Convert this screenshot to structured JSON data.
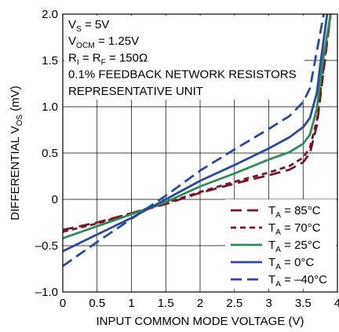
{
  "chart_data": {
    "type": "line",
    "title": "",
    "xlabel": "INPUT COMMON MODE VOLTAGE (V)",
    "ylabel": {
      "pre": "DIFFERENTIAL V",
      "sub": "OS",
      "post": " (mV)"
    },
    "xlim": [
      0,
      4
    ],
    "ylim": [
      -1.0,
      2.0
    ],
    "xticks": [
      "0",
      "0.5",
      "1",
      "1.5",
      "2",
      "2.5",
      "3",
      "3.5",
      "4"
    ],
    "xtick_values": [
      0,
      0.5,
      1,
      1.5,
      2,
      2.5,
      3,
      3.5,
      4
    ],
    "yticks": [
      "–1.0",
      "–0.5",
      "0",
      "0.5",
      "1.0",
      "1.5",
      "2.0"
    ],
    "ytick_values": [
      -1.0,
      -0.5,
      0,
      0.5,
      1.0,
      1.5,
      2.0
    ],
    "grid": true,
    "legend_position": "bottom-right",
    "annotations": [
      {
        "pre": "V",
        "sub": "S",
        "post": " = 5V"
      },
      {
        "pre": "V",
        "sub": "OCM",
        "post": " = 1.25V"
      },
      {
        "pre": "R",
        "sub": "I",
        "mid": " = R",
        "sub2": "F",
        "post": " = 150Ω"
      },
      {
        "pre": "0.1% FEEDBACK NETWORK RESISTORS"
      },
      {
        "pre": "REPRESENTATIVE UNIT"
      }
    ],
    "series": [
      {
        "name": {
          "pre": "T",
          "sub": "A",
          "post": " = 85°C"
        },
        "color": "#7a1428",
        "dash": "long",
        "x": [
          0,
          0.5,
          1,
          1.5,
          2,
          2.5,
          3,
          3.3,
          3.5,
          3.6,
          3.7,
          3.8,
          3.9
        ],
        "y": [
          -0.33,
          -0.25,
          -0.15,
          -0.05,
          0.07,
          0.17,
          0.26,
          0.32,
          0.4,
          0.5,
          0.8,
          1.4,
          2.0
        ]
      },
      {
        "name": {
          "pre": "T",
          "sub": "A",
          "post": " = 70°C"
        },
        "color": "#7a1428",
        "dash": "short",
        "x": [
          0,
          0.5,
          1,
          1.5,
          2,
          2.5,
          3,
          3.3,
          3.5,
          3.6,
          3.7,
          3.8,
          3.9
        ],
        "y": [
          -0.35,
          -0.26,
          -0.15,
          -0.04,
          0.08,
          0.19,
          0.29,
          0.36,
          0.45,
          0.56,
          0.85,
          1.45,
          2.0
        ]
      },
      {
        "name": {
          "pre": "T",
          "sub": "A",
          "post": " = 25°C"
        },
        "color": "#2e8b57",
        "dash": "solid",
        "x": [
          0,
          0.5,
          1,
          1.5,
          2,
          2.5,
          3,
          3.3,
          3.5,
          3.6,
          3.7,
          3.8,
          3.9
        ],
        "y": [
          -0.42,
          -0.29,
          -0.16,
          -0.03,
          0.14,
          0.28,
          0.43,
          0.51,
          0.6,
          0.7,
          0.98,
          1.55,
          2.0
        ]
      },
      {
        "name": {
          "pre": "T",
          "sub": "A",
          "post": " = 0°C"
        },
        "color": "#2b4a9a",
        "dash": "solid",
        "x": [
          0,
          0.5,
          1,
          1.5,
          2,
          2.5,
          3,
          3.3,
          3.5,
          3.6,
          3.7,
          3.75,
          3.85
        ],
        "y": [
          -0.56,
          -0.38,
          -0.2,
          0.0,
          0.2,
          0.37,
          0.55,
          0.67,
          0.78,
          0.88,
          1.15,
          1.45,
          2.0
        ]
      },
      {
        "name": {
          "pre": "T",
          "sub": "A",
          "post": " = –40°C"
        },
        "color": "#2b4a9a",
        "dash": "long",
        "x": [
          0,
          0.5,
          1,
          1.5,
          2,
          2.5,
          3,
          3.3,
          3.5,
          3.6,
          3.7,
          3.8
        ],
        "y": [
          -0.72,
          -0.46,
          -0.21,
          0.04,
          0.31,
          0.54,
          0.76,
          0.9,
          1.05,
          1.2,
          1.6,
          2.0
        ]
      }
    ]
  }
}
